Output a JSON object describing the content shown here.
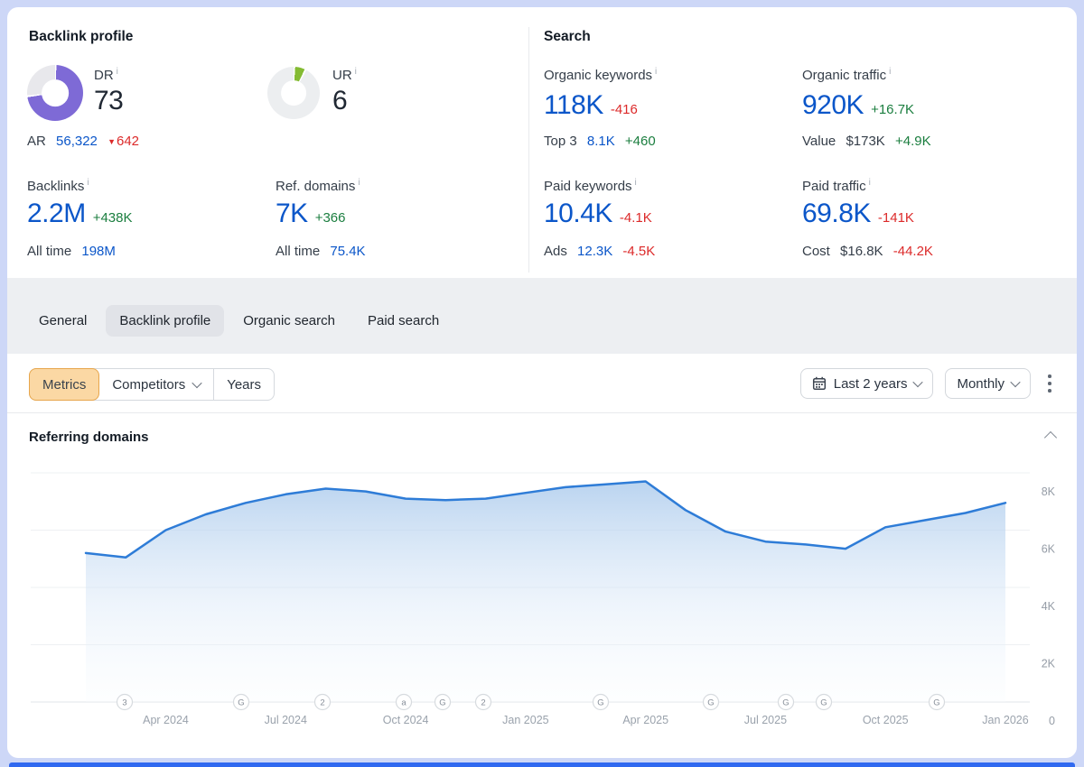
{
  "icons": {
    "info": "i",
    "triangle_down": "▼"
  },
  "colors": {
    "page_bg": "#cdd7f7",
    "accent_blue": "#0b56c9",
    "green": "#1b7e3f",
    "red": "#dc2a2a",
    "dr_purple": "#7e6ad6",
    "ur_green": "#84bb33",
    "donut_rest": "#e8e8ec",
    "line_blue": "#2e7cd7",
    "metrics_btn_bg": "#fbd8a4",
    "metrics_btn_border": "#e7a64c",
    "bottom_bar": "#3069f0"
  },
  "backlink_profile": {
    "title": "Backlink profile",
    "dr": {
      "label": "DR",
      "value": "73",
      "pct": 73
    },
    "ar": {
      "label": "AR",
      "value": "56,322",
      "delta": "642"
    },
    "ur": {
      "label": "UR",
      "value": "6",
      "pct": 7
    },
    "backlinks": {
      "label": "Backlinks",
      "value": "2.2M",
      "delta": "+438K",
      "sub_label": "All time",
      "sub_value": "198M"
    },
    "ref_domains": {
      "label": "Ref. domains",
      "value": "7K",
      "delta": "+366",
      "sub_label": "All time",
      "sub_value": "75.4K"
    }
  },
  "search": {
    "title": "Search",
    "organic_keywords": {
      "label": "Organic keywords",
      "value": "118K",
      "delta": "-416",
      "sub_label": "Top 3",
      "sub_value": "8.1K",
      "sub_delta": "+460"
    },
    "organic_traffic": {
      "label": "Organic traffic",
      "value": "920K",
      "delta": "+16.7K",
      "sub_label": "Value",
      "sub_value": "$173K",
      "sub_delta": "+4.9K"
    },
    "paid_keywords": {
      "label": "Paid keywords",
      "value": "10.4K",
      "delta": "-4.1K",
      "sub_label": "Ads",
      "sub_value": "12.3K",
      "sub_delta": "-4.5K"
    },
    "paid_traffic": {
      "label": "Paid traffic",
      "value": "69.8K",
      "delta": "-141K",
      "sub_label": "Cost",
      "sub_value": "$16.8K",
      "sub_delta": "-44.2K"
    }
  },
  "tabs": {
    "items": [
      {
        "label": "General",
        "active": false
      },
      {
        "label": "Backlink profile",
        "active": true
      },
      {
        "label": "Organic search",
        "active": false
      },
      {
        "label": "Paid search",
        "active": false
      }
    ]
  },
  "toolbar": {
    "metrics_label": "Metrics",
    "competitors_label": "Competitors",
    "years_label": "Years",
    "range_label": "Last 2 years",
    "granularity_label": "Monthly"
  },
  "chart_data": {
    "type": "area",
    "title": "Referring domains",
    "x": [
      "Feb 2024",
      "Mar 2024",
      "Apr 2024",
      "May 2024",
      "Jun 2024",
      "Jul 2024",
      "Aug 2024",
      "Sep 2024",
      "Oct 2024",
      "Nov 2024",
      "Dec 2024",
      "Jan 2025",
      "Feb 2025",
      "Mar 2025",
      "Apr 2025",
      "May 2025",
      "Jun 2025",
      "Jul 2025",
      "Aug 2025",
      "Sep 2025",
      "Oct 2025",
      "Nov 2025",
      "Dec 2025",
      "Jan 2026"
    ],
    "values_k": [
      5.2,
      5.05,
      6.0,
      6.55,
      6.95,
      7.25,
      7.45,
      7.35,
      7.1,
      7.05,
      7.1,
      7.3,
      7.5,
      7.6,
      7.7,
      6.7,
      5.95,
      5.6,
      5.5,
      5.35,
      6.1,
      6.35,
      6.6,
      6.95
    ],
    "ylabel": "",
    "xlabel": "",
    "ylim_k": [
      0,
      8
    ],
    "grid": true,
    "legend": "none",
    "yticks": [
      {
        "v": 8,
        "label": "8K"
      },
      {
        "v": 6,
        "label": "6K"
      },
      {
        "v": 4,
        "label": "4K"
      },
      {
        "v": 2,
        "label": "2K"
      },
      {
        "v": 0,
        "label": "0"
      }
    ],
    "xticks": [
      {
        "label": "Apr 2024",
        "i": 2
      },
      {
        "label": "Jul 2024",
        "i": 5
      },
      {
        "label": "Oct 2024",
        "i": 8
      },
      {
        "label": "Jan 2025",
        "i": 11
      },
      {
        "label": "Apr 2025",
        "i": 14
      },
      {
        "label": "Jul 2025",
        "i": 17
      },
      {
        "label": "Oct 2025",
        "i": 20
      },
      {
        "label": "Jan 2026",
        "i": 23
      }
    ],
    "event_markers": [
      {
        "label": "3",
        "x": 106
      },
      {
        "label": "G",
        "x": 235
      },
      {
        "label": "2",
        "x": 325
      },
      {
        "label": "a",
        "x": 415
      },
      {
        "label": "G",
        "x": 458
      },
      {
        "label": "2",
        "x": 503
      },
      {
        "label": "G",
        "x": 633
      },
      {
        "label": "G",
        "x": 755
      },
      {
        "label": "G",
        "x": 838
      },
      {
        "label": "G",
        "x": 880
      },
      {
        "label": "G",
        "x": 1005
      }
    ]
  }
}
